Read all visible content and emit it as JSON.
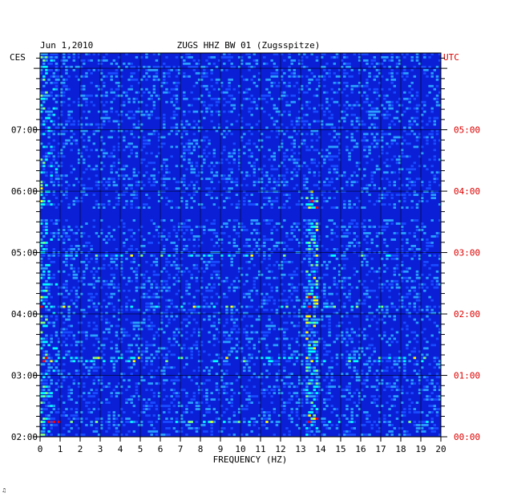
{
  "chart_data": {
    "type": "heatmap",
    "date": "Jun 1,2010",
    "title": "ZUGS HHZ BW 01 (Zugsspitze)",
    "xlabel": "FREQUENCY (HZ)",
    "left_zone_label": "CES",
    "right_zone_label": "UTC",
    "xlim": [
      0,
      20
    ],
    "x_ticks": [
      "0",
      "1",
      "2",
      "3",
      "4",
      "5",
      "6",
      "7",
      "8",
      "9",
      "10",
      "11",
      "12",
      "13",
      "14",
      "15",
      "16",
      "17",
      "18",
      "19",
      "20"
    ],
    "time_range_utc_hours": [
      0,
      6.25
    ],
    "left_ticks": [
      {
        "label": "02:00",
        "utc_hour": 0
      },
      {
        "label": "03:00",
        "utc_hour": 1
      },
      {
        "label": "04:00",
        "utc_hour": 2
      },
      {
        "label": "05:00",
        "utc_hour": 3
      },
      {
        "label": "06:00",
        "utc_hour": 4
      },
      {
        "label": "07:00",
        "utc_hour": 5
      }
    ],
    "right_ticks": [
      {
        "label": "00:00",
        "utc_hour": 0
      },
      {
        "label": "01:00",
        "utc_hour": 1
      },
      {
        "label": "02:00",
        "utc_hour": 2
      },
      {
        "label": "03:00",
        "utc_hour": 3
      },
      {
        "label": "04:00",
        "utc_hour": 4
      },
      {
        "label": "05:00",
        "utc_hour": 5
      }
    ],
    "minor_ticks_per_hour": 6,
    "colors": {
      "background": "#0a1fd6",
      "low": "#0010b0",
      "mid": "#00ffff",
      "high": "#ffff00",
      "peak": "#ff0000",
      "grid": "#000000",
      "right_axis_text": "#dd0000"
    },
    "features": {
      "persistent_band_hz": [
        13.3,
        13.9
      ],
      "persistent_band_utc_hours": [
        0,
        4.0
      ],
      "low_freq_energy_hz": [
        0.0,
        1.0
      ],
      "quiet_stripe_utc_hours": [
        3.55,
        3.7
      ],
      "broadband_lines_utc_hours": [
        2.12,
        2.95,
        1.25,
        0.25
      ]
    }
  },
  "corner_mark": "♫"
}
